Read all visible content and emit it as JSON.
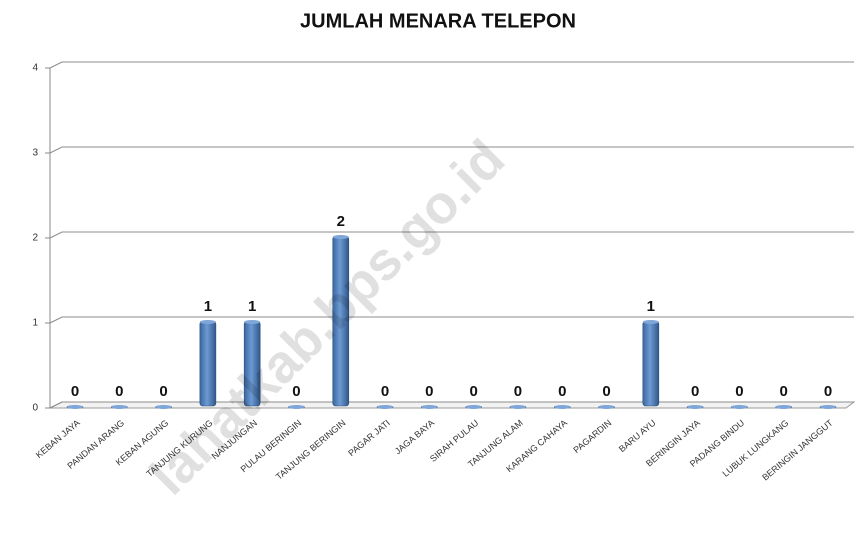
{
  "chart_data": {
    "type": "bar",
    "title": "JUMLAH MENARA TELEPON",
    "categories": [
      "KEBAN JAYA",
      "PANDAN ARANG",
      "KEBAN AGUNG",
      "TANJUNG KURUNG",
      "NANJUNGAN",
      "PULAU BERINGIN",
      "TANJUNG BERINGIN",
      "PAGAR JATI",
      "JAGA BAYA",
      "SIRAH PULAU",
      "TANJUNG ALAM",
      "KARANG CAHAYA",
      "PAGARDIN",
      "BARU AYU",
      "BERINGIN JAYA",
      "PADANG BINDU",
      "LUBUK LUNGKANG",
      "BERINGIN JANGGUT"
    ],
    "values": [
      0,
      0,
      0,
      1,
      1,
      0,
      2,
      0,
      0,
      0,
      0,
      0,
      0,
      1,
      0,
      0,
      0,
      0
    ],
    "color": "#4f81bd",
    "ylim": [
      0,
      4
    ],
    "yticks": [
      0,
      1,
      2,
      3,
      4
    ],
    "grid": true,
    "watermark": "lahatkab.bps.go.id"
  }
}
